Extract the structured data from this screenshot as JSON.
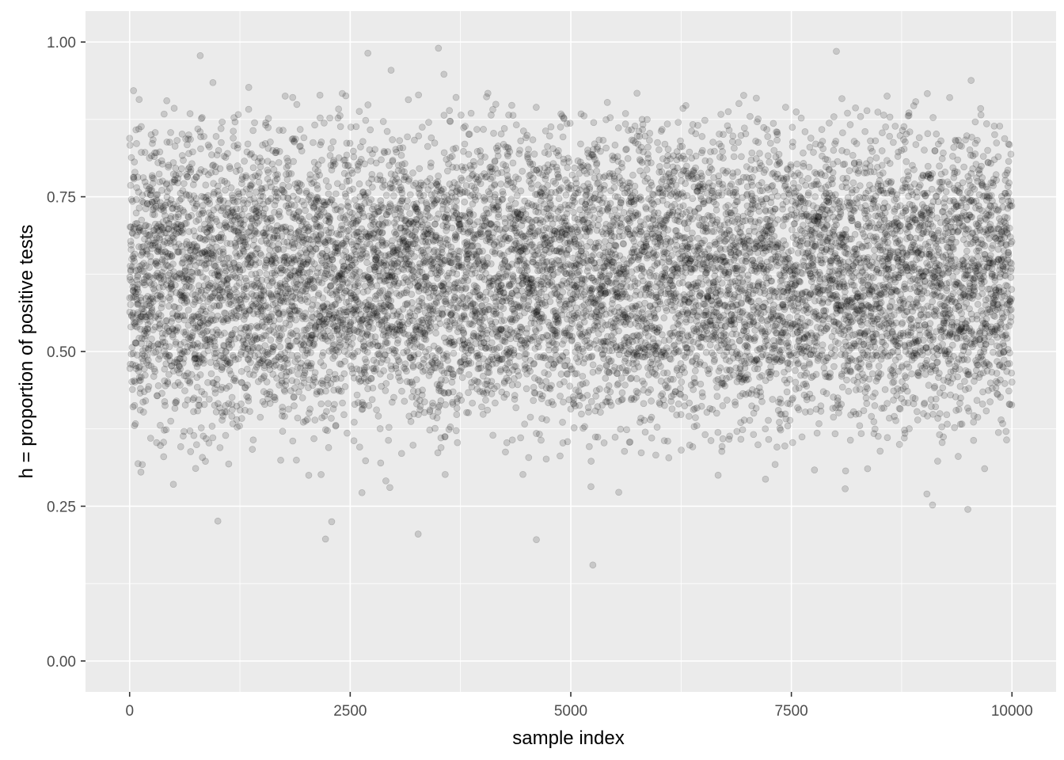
{
  "chart_data": {
    "type": "scatter",
    "xlabel": "sample index",
    "ylabel": "h = proportion of positive tests",
    "xlim": [
      -500,
      10500
    ],
    "ylim": [
      -0.05,
      1.05
    ],
    "x_ticks": [
      0,
      2500,
      5000,
      7500,
      10000
    ],
    "x_tick_labels": [
      "0",
      "2500",
      "5000",
      "7500",
      "10000"
    ],
    "y_ticks": [
      0.0,
      0.25,
      0.5,
      0.75,
      1.0
    ],
    "y_tick_labels": [
      "0.00",
      "0.25",
      "0.50",
      "0.75",
      "1.00"
    ],
    "grid": true,
    "point_color": "#000000",
    "point_opacity": 0.15,
    "panel_background": "#ebebeb",
    "grid_color": "#ffffff",
    "n_points": 10000,
    "distribution_summary": {
      "x_range": [
        0,
        10000
      ],
      "y_center": 0.72,
      "y_typical_range": [
        0.45,
        0.97
      ],
      "y_min_observed": 0.155,
      "y_max_observed": 0.99
    },
    "notable_points": [
      {
        "x": 5250,
        "y": 0.155
      },
      {
        "x": 2220,
        "y": 0.197
      },
      {
        "x": 4610,
        "y": 0.196
      },
      {
        "x": 1000,
        "y": 0.226
      },
      {
        "x": 2290,
        "y": 0.225
      },
      {
        "x": 3270,
        "y": 0.205
      },
      {
        "x": 9500,
        "y": 0.245
      },
      {
        "x": 9100,
        "y": 0.252
      },
      {
        "x": 3500,
        "y": 0.99
      },
      {
        "x": 8010,
        "y": 0.985
      },
      {
        "x": 2700,
        "y": 0.982
      },
      {
        "x": 800,
        "y": 0.978
      }
    ]
  }
}
